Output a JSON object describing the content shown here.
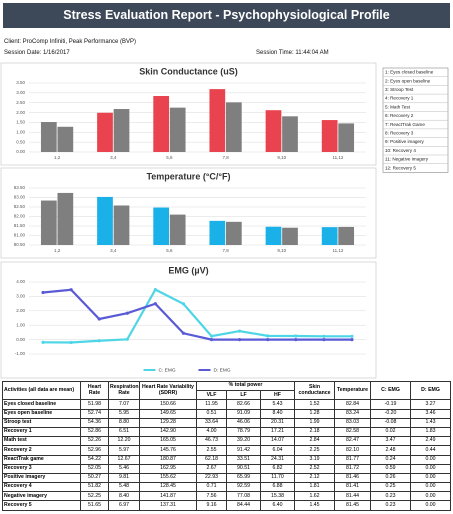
{
  "header": {
    "title": "Stress Evaluation Report - Psychophysiological Profile",
    "client": "Client: ProComp Infiniti, Peak Performance (BVP)",
    "session_date": "Session Date: 1/16/2017",
    "session_time": "Session Time: 11:44:04 AM"
  },
  "activity_key": [
    "1: Eyes closed baseline",
    "2: Eyes open baseline",
    "3: Stroop Test",
    "4: Recovery 1",
    "5: Math Test",
    "6: Recovery 2",
    "7: ReactTrak Game",
    "8: Recovery 3",
    "9: Positive imagery",
    "10: Recovery 4",
    "11: Negative imagery",
    "12: Recovery 5"
  ],
  "chart_data": [
    {
      "type": "bar",
      "title": "Skin Conductance (uS)",
      "categories": [
        "1,2",
        "3,4",
        "5,6",
        "7,8",
        "9,10",
        "11,12"
      ],
      "series": [
        {
          "values": [
            1.52,
            1.99,
            2.84,
            3.19,
            2.12,
            1.62
          ],
          "colors": [
            "#7f7f7f",
            "#e8434f",
            "#e8434f",
            "#e8434f",
            "#e8434f",
            "#e8434f"
          ]
        },
        {
          "values": [
            1.28,
            2.18,
            2.25,
            2.52,
            1.81,
            1.45
          ],
          "color": "#7f7f7f"
        }
      ],
      "ylim": [
        0,
        3.5
      ],
      "yticks": [
        {
          "value": 0,
          "label": "0.00"
        },
        {
          "value": 0.5,
          "label": "0.50"
        },
        {
          "value": 1,
          "label": "1.00"
        },
        {
          "value": 1.5,
          "label": "1.50"
        },
        {
          "value": 2,
          "label": "2.00"
        },
        {
          "value": 2.5,
          "label": "2.50"
        },
        {
          "value": 3,
          "label": "3.00"
        },
        {
          "value": 3.5,
          "label": "3.50"
        }
      ],
      "grid": true
    },
    {
      "type": "bar",
      "title": "Temperature (°C/°F)",
      "categories": [
        "1,2",
        "3,4",
        "5,6",
        "7,8",
        "9,10",
        "11,12"
      ],
      "series": [
        {
          "values": [
            82.84,
            83.03,
            82.47,
            81.77,
            81.46,
            81.44
          ],
          "colors": [
            "#7f7f7f",
            "#1ab0e8",
            "#1ab0e8",
            "#1ab0e8",
            "#1ab0e8",
            "#1ab0e8"
          ]
        },
        {
          "values": [
            83.24,
            82.58,
            82.1,
            81.72,
            81.41,
            81.45
          ],
          "color": "#7f7f7f"
        }
      ],
      "ylim": [
        80.5,
        83.5
      ],
      "yticks": [
        {
          "value": 80.5,
          "label": "80.50"
        },
        {
          "value": 81,
          "label": "81.00"
        },
        {
          "value": 81.5,
          "label": "81.50"
        },
        {
          "value": 82,
          "label": "82.00"
        },
        {
          "value": 82.5,
          "label": "82.50"
        },
        {
          "value": 83,
          "label": "83.00"
        },
        {
          "value": 83.5,
          "label": "83.50"
        }
      ],
      "grid": true
    },
    {
      "type": "line",
      "title": "EMG (µV)",
      "categories": [
        null,
        null,
        null,
        null,
        null,
        null,
        null,
        null,
        null,
        null,
        null,
        null
      ],
      "series": [
        {
          "name": "C: EMG",
          "color": "#4fd6e6",
          "values": [
            -0.19,
            -0.2,
            -0.08,
            0.02,
            3.47,
            2.48,
            0.24,
            0.59,
            0.26,
            0.25,
            0.23,
            0.23
          ]
        },
        {
          "name": "D: EMG",
          "color": "#5a5ad6",
          "values": [
            3.27,
            3.46,
            1.43,
            1.83,
            2.49,
            0.44,
            0,
            0,
            0,
            0,
            0,
            0
          ]
        }
      ],
      "ylim": [
        -1,
        4
      ],
      "yticks": [
        {
          "value": -1,
          "label": "-1.00"
        },
        {
          "value": 0,
          "label": "0.00"
        },
        {
          "value": 1,
          "label": "1.00"
        },
        {
          "value": 2,
          "label": "2.00"
        },
        {
          "value": 3,
          "label": "3.00"
        },
        {
          "value": 4,
          "label": "4.00"
        }
      ],
      "grid": true
    }
  ],
  "table": {
    "columns": [
      "Activities (all data are mean)",
      "Heart Rate",
      "Respiration Rate",
      "Heart Rate Variability (SDRR)",
      "% total power",
      "Skin conductance",
      "Temperature",
      "C: EMG",
      "D: EMG"
    ],
    "subcolumns": [
      "VLF",
      "LF",
      "HF"
    ],
    "rows": [
      [
        "Eyes closed baseline",
        "51.98",
        "7.07",
        "150.66",
        "11.95",
        "82.66",
        "5.43",
        "1.52",
        "82.84",
        "-0.19",
        "3.27"
      ],
      [
        "Eyes open baseline",
        "52.74",
        "5.95",
        "149.65",
        "0.51",
        "91.09",
        "8.40",
        "1.28",
        "83.24",
        "-0.20",
        "3.46"
      ],
      [
        "Stroop test",
        "54.36",
        "8.80",
        "129.28",
        "33.64",
        "46.06",
        "20.31",
        "1.99",
        "83.03",
        "-0.08",
        "1.43"
      ],
      [
        "Recovery 1",
        "52.86",
        "6.51",
        "142.90",
        "4.00",
        "78.79",
        "17.21",
        "2.18",
        "82.58",
        "0.02",
        "1.83"
      ],
      [
        "Math test",
        "52.26",
        "12.20",
        "165.05",
        "46.73",
        "39.20",
        "14.07",
        "2.84",
        "82.47",
        "3.47",
        "2.49"
      ],
      [
        "Recovery 2",
        "52.96",
        "5.97",
        "145.76",
        "2.55",
        "91.42",
        "6.04",
        "2.25",
        "82.10",
        "2.48",
        "0.44"
      ],
      [
        "ReactTrak game",
        "54.22",
        "12.67",
        "180.87",
        "62.18",
        "33.51",
        "24.31",
        "3.19",
        "81.77",
        "0.24",
        "0.00"
      ],
      [
        "Recovery 3",
        "52.05",
        "5.46",
        "162.95",
        "2.67",
        "90.51",
        "6.82",
        "2.52",
        "81.72",
        "0.59",
        "0.00"
      ],
      [
        "Positive imagery",
        "50.27",
        "9.81",
        "155.62",
        "22.93",
        "65.99",
        "11.70",
        "2.12",
        "81.46",
        "0.26",
        "0.00"
      ],
      [
        "Recovery 4",
        "51.82",
        "5.48",
        "128.45",
        "0.71",
        "92.59",
        "6.88",
        "1.81",
        "81.41",
        "0.25",
        "0.00"
      ],
      [
        "Negative imagery",
        "52.25",
        "8.40",
        "141.87",
        "7.56",
        "77.08",
        "15.38",
        "1.62",
        "81.44",
        "0.23",
        "0.00"
      ],
      [
        "Recovery 5",
        "51.65",
        "6.97",
        "137.31",
        "9.16",
        "84.44",
        "6.40",
        "1.45",
        "81.45",
        "0.23",
        "0.00"
      ]
    ]
  }
}
